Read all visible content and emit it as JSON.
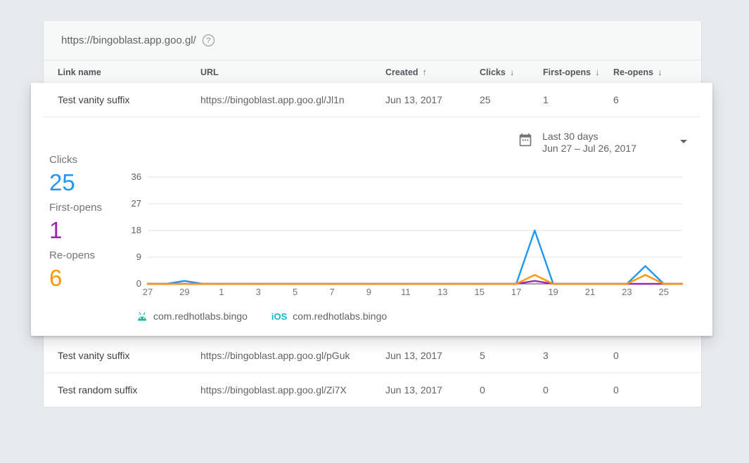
{
  "page": {
    "background": "#e8ebee"
  },
  "card": {
    "base_url": "https://bingoblast.app.goo.gl/",
    "help_label": "?",
    "columns": {
      "name": "Link name",
      "url": "URL",
      "created": "Created",
      "clicks": "Clicks",
      "first_opens": "First-opens",
      "re_opens": "Re-opens"
    },
    "sort_arrows": {
      "created": "↑",
      "clicks": "↓",
      "first_opens": "↓",
      "re_opens": "↓"
    }
  },
  "rows": {
    "expanded": {
      "name": "Test vanity suffix",
      "url": "https://bingoblast.app.goo.gl/Jl1n",
      "created": "Jun 13, 2017",
      "clicks": "25",
      "first_opens": "1",
      "re_opens": "6"
    },
    "row2": {
      "name": "Test vanity suffix",
      "url": "https://bingoblast.app.goo.gl/pGuk",
      "created": "Jun 13, 2017",
      "clicks": "5",
      "first_opens": "3",
      "re_opens": "0"
    },
    "row3": {
      "name": "Test random suffix",
      "url": "https://bingoblast.app.goo.gl/Zi7X",
      "created": "Jun 13, 2017",
      "clicks": "0",
      "first_opens": "0",
      "re_opens": "0"
    }
  },
  "panel": {
    "date_range": {
      "label": "Last 30 days",
      "range": "Jun 27 – Jul 26, 2017"
    },
    "stats": [
      {
        "label": "Clicks",
        "value": "25",
        "color": "#2196f3"
      },
      {
        "label": "First-opens",
        "value": "1",
        "color": "#9c27b0"
      },
      {
        "label": "Re-opens",
        "value": "6",
        "color": "#ff9800"
      }
    ],
    "legend": [
      {
        "platform": "android",
        "package": "com.redhotlabs.bingo",
        "color": "#1cb5a3"
      },
      {
        "platform": "ios",
        "package": "com.redhotlabs.bingo",
        "color": "#12b5ce"
      }
    ]
  },
  "chart_data": {
    "type": "line",
    "x_start": "Jun 27, 2017",
    "x_end": "Jul 26, 2017",
    "x_tick_labels": [
      "27",
      "29",
      "1",
      "3",
      "5",
      "7",
      "9",
      "11",
      "13",
      "15",
      "17",
      "19",
      "21",
      "23",
      "25"
    ],
    "y_ticks": [
      0,
      9,
      18,
      27,
      36
    ],
    "ylim": [
      0,
      36
    ],
    "grid": "horizontal",
    "legend_position": "bottom",
    "series": [
      {
        "name": "Clicks",
        "color": "#2196f3",
        "values": [
          0,
          0,
          1,
          0,
          0,
          0,
          0,
          0,
          0,
          0,
          0,
          0,
          0,
          0,
          0,
          0,
          0,
          0,
          0,
          0,
          0,
          18,
          0,
          0,
          0,
          0,
          0,
          6,
          0,
          0
        ]
      },
      {
        "name": "First-opens",
        "color": "#9c27b0",
        "values": [
          0,
          0,
          0,
          0,
          0,
          0,
          0,
          0,
          0,
          0,
          0,
          0,
          0,
          0,
          0,
          0,
          0,
          0,
          0,
          0,
          0,
          1,
          0,
          0,
          0,
          0,
          0,
          0,
          0,
          0
        ]
      },
      {
        "name": "Re-opens",
        "color": "#ff9800",
        "values": [
          0,
          0,
          0,
          0,
          0,
          0,
          0,
          0,
          0,
          0,
          0,
          0,
          0,
          0,
          0,
          0,
          0,
          0,
          0,
          0,
          0,
          3,
          0,
          0,
          0,
          0,
          0,
          3,
          0,
          0
        ]
      }
    ]
  }
}
